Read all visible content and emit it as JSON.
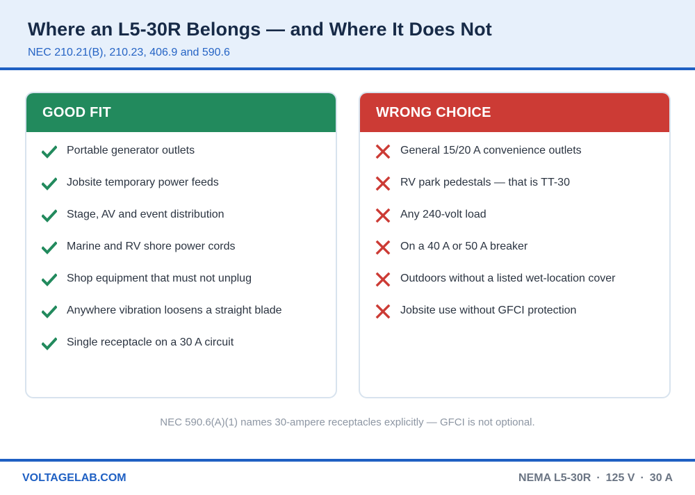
{
  "header": {
    "title": "Where an L5-30R Belongs — and Where It Does Not",
    "subtitle": "NEC 210.21(B), 210.23, 406.9 and 590.6"
  },
  "good": {
    "heading": "GOOD FIT",
    "accent": "#228a5d",
    "items": [
      "Portable generator outlets",
      "Jobsite temporary power feeds",
      "Stage, AV and event distribution",
      "Marine and RV shore power cords",
      "Shop equipment that must not unplug",
      "Anywhere vibration loosens a straight blade",
      "Single receptacle on a 30 A circuit"
    ]
  },
  "bad": {
    "heading": "WRONG CHOICE",
    "accent": "#cc3b35",
    "items": [
      "General 15/20 A convenience outlets",
      "RV park pedestals — that is TT-30",
      "Any 240-volt load",
      "On a 40 A or 50 A breaker",
      "Outdoors without a listed wet-location cover",
      "Jobsite use without GFCI protection"
    ]
  },
  "note": "NEC 590.6(A)(1) names 30-ampere receptacles explicitly — GFCI is not optional.",
  "footer": {
    "brand": "VOLTAGELAB.COM",
    "spec_model": "NEMA L5-30R",
    "spec_voltage": "125 V",
    "spec_amps": "30 A",
    "separator": "·"
  }
}
